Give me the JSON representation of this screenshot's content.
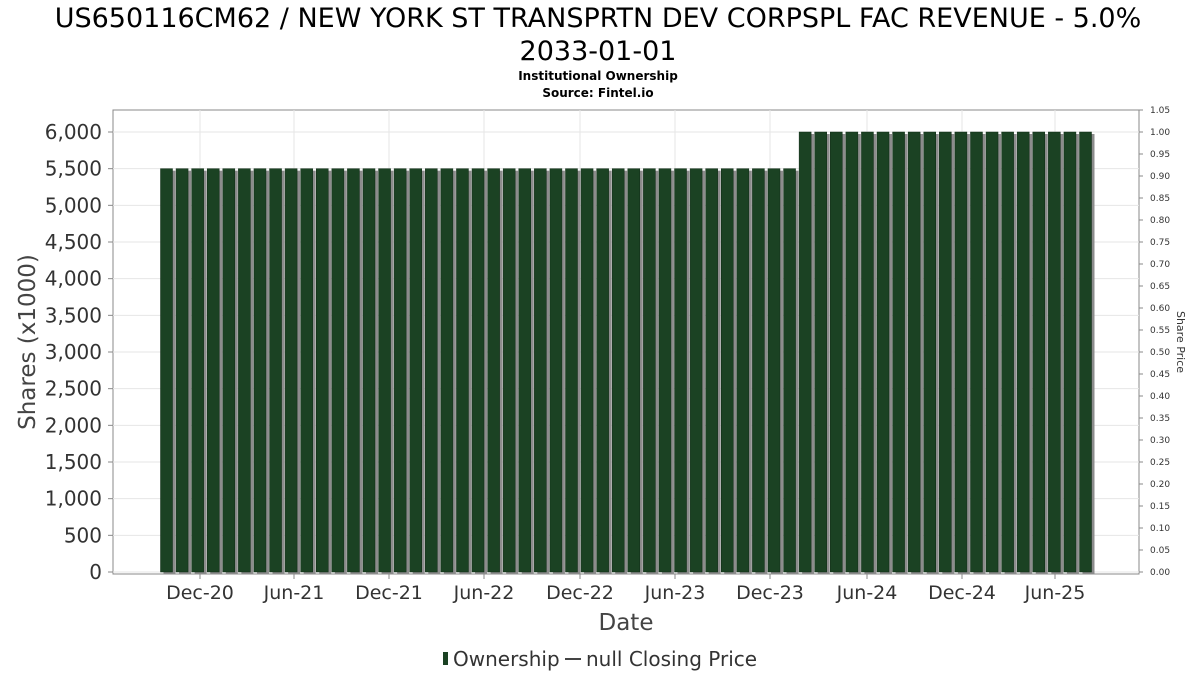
{
  "chart_data": {
    "type": "bar",
    "title_line1": "US650116CM62 / NEW YORK ST TRANSPRTN DEV CORPSPL FAC REVENUE - 5.0%",
    "title_line2": "2033-01-01",
    "subtitle_line1": "Institutional Ownership",
    "subtitle_line2": "Source: Fintel.io",
    "xlabel": "Date",
    "ylabel": "Shares (x1000)",
    "ylabel_right": "Share Price",
    "ylim": [
      0,
      6300
    ],
    "ylim_right": [
      0,
      1.05
    ],
    "yticks": [
      "0",
      "500",
      "1,000",
      "1,500",
      "2,000",
      "2,500",
      "3,000",
      "3,500",
      "4,000",
      "4,500",
      "5,000",
      "5,500",
      "6,000"
    ],
    "yticks_right": [
      "0.00",
      "0.05",
      "0.10",
      "0.15",
      "0.20",
      "0.25",
      "0.30",
      "0.35",
      "0.40",
      "0.45",
      "0.50",
      "0.55",
      "0.60",
      "0.65",
      "0.70",
      "0.75",
      "0.80",
      "0.85",
      "0.90",
      "0.95",
      "1.00",
      "1.05"
    ],
    "xticks": [
      "Dec-20",
      "Jun-21",
      "Dec-21",
      "Jun-22",
      "Dec-22",
      "Jun-23",
      "Dec-23",
      "Jun-24",
      "Dec-24",
      "Jun-25"
    ],
    "grid": true,
    "legend_position": "bottom",
    "series": [
      {
        "name": "Ownership",
        "color": "#1b4223",
        "values": [
          5500,
          5500,
          5500,
          5500,
          5500,
          5500,
          5500,
          5500,
          5500,
          5500,
          5500,
          5500,
          5500,
          5500,
          5500,
          5500,
          5500,
          5500,
          5500,
          5500,
          5500,
          5500,
          5500,
          5500,
          5500,
          5500,
          5500,
          5500,
          5500,
          5500,
          5500,
          5500,
          5500,
          5500,
          5500,
          5500,
          5500,
          5500,
          5500,
          5500,
          5500,
          6000,
          6000,
          6000,
          6000,
          6000,
          6000,
          6000,
          6000,
          6000,
          6000,
          6000,
          6000,
          6000,
          6000,
          6000,
          6000,
          6000,
          6000,
          6000
        ]
      },
      {
        "name": "null Closing Price",
        "color": "#444444",
        "values": []
      }
    ]
  }
}
